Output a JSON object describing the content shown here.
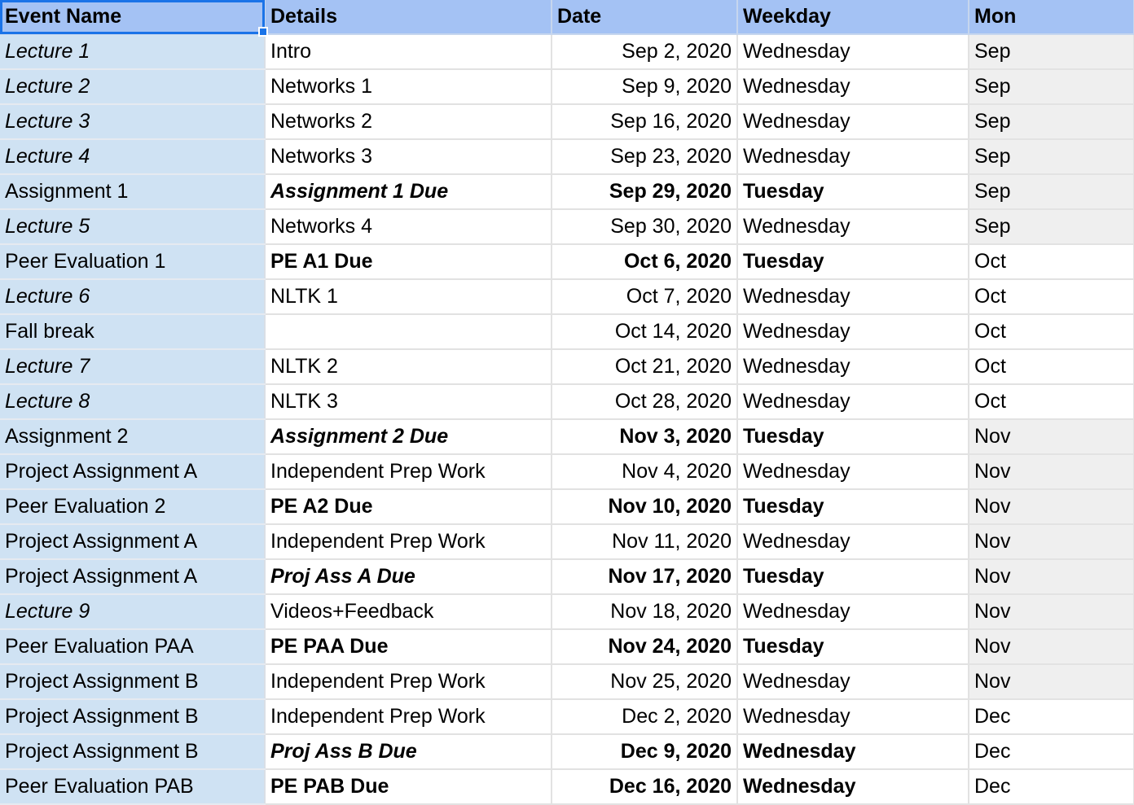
{
  "columns": [
    "Event Name",
    "Details",
    "Date",
    "Weekday",
    "Mon"
  ],
  "rows": [
    {
      "event": "Lecture 1",
      "details": "Intro",
      "date": "Sep 2, 2020",
      "weekday": "Wednesday",
      "month": "Sep",
      "style": {
        "event": "italic",
        "details": "normal",
        "date": "normal",
        "weekday": "normal"
      }
    },
    {
      "event": "Lecture 2",
      "details": "Networks 1",
      "date": "Sep 9, 2020",
      "weekday": "Wednesday",
      "month": "Sep",
      "style": {
        "event": "italic",
        "details": "normal",
        "date": "normal",
        "weekday": "normal"
      }
    },
    {
      "event": "Lecture 3",
      "details": "Networks 2",
      "date": "Sep 16, 2020",
      "weekday": "Wednesday",
      "month": "Sep",
      "style": {
        "event": "italic",
        "details": "normal",
        "date": "normal",
        "weekday": "normal"
      }
    },
    {
      "event": "Lecture 4",
      "details": "Networks 3",
      "date": "Sep 23, 2020",
      "weekday": "Wednesday",
      "month": "Sep",
      "style": {
        "event": "italic",
        "details": "normal",
        "date": "normal",
        "weekday": "normal"
      }
    },
    {
      "event": "Assignment 1",
      "details": "Assignment 1 Due",
      "date": "Sep 29, 2020",
      "weekday": "Tuesday",
      "month": "Sep",
      "style": {
        "event": "normal",
        "details": "bold-italic",
        "date": "bold",
        "weekday": "bold"
      }
    },
    {
      "event": "Lecture 5",
      "details": "Networks 4",
      "date": "Sep 30, 2020",
      "weekday": "Wednesday",
      "month": "Sep",
      "style": {
        "event": "italic",
        "details": "normal",
        "date": "normal",
        "weekday": "normal"
      }
    },
    {
      "event": "Peer Evaluation 1",
      "details": "PE A1 Due",
      "date": "Oct 6, 2020",
      "weekday": "Tuesday",
      "month": "Oct",
      "style": {
        "event": "normal",
        "details": "bold",
        "date": "bold",
        "weekday": "bold"
      }
    },
    {
      "event": "Lecture 6",
      "details": "NLTK 1",
      "date": "Oct 7, 2020",
      "weekday": "Wednesday",
      "month": "Oct",
      "style": {
        "event": "italic",
        "details": "normal",
        "date": "normal",
        "weekday": "normal"
      }
    },
    {
      "event": "Fall break",
      "details": "",
      "date": "Oct 14, 2020",
      "weekday": "Wednesday",
      "month": "Oct",
      "style": {
        "event": "normal",
        "details": "normal",
        "date": "normal",
        "weekday": "normal"
      }
    },
    {
      "event": "Lecture 7",
      "details": "NLTK 2",
      "date": "Oct 21, 2020",
      "weekday": "Wednesday",
      "month": "Oct",
      "style": {
        "event": "italic",
        "details": "normal",
        "date": "normal",
        "weekday": "normal"
      }
    },
    {
      "event": "Lecture 8",
      "details": "NLTK 3",
      "date": "Oct 28, 2020",
      "weekday": "Wednesday",
      "month": "Oct",
      "style": {
        "event": "italic",
        "details": "normal",
        "date": "normal",
        "weekday": "normal"
      }
    },
    {
      "event": "Assignment 2",
      "details": "Assignment 2 Due",
      "date": "Nov 3, 2020",
      "weekday": "Tuesday",
      "month": "Nov",
      "style": {
        "event": "normal",
        "details": "bold-italic",
        "date": "bold",
        "weekday": "bold"
      }
    },
    {
      "event": "Project Assignment A",
      "details": "Independent Prep Work",
      "date": "Nov 4, 2020",
      "weekday": "Wednesday",
      "month": "Nov",
      "style": {
        "event": "normal",
        "details": "normal",
        "date": "normal",
        "weekday": "normal"
      }
    },
    {
      "event": "Peer Evaluation 2",
      "details": "PE A2 Due",
      "date": "Nov 10, 2020",
      "weekday": "Tuesday",
      "month": "Nov",
      "style": {
        "event": "normal",
        "details": "bold",
        "date": "bold",
        "weekday": "bold"
      }
    },
    {
      "event": "Project Assignment A",
      "details": "Independent Prep Work",
      "date": "Nov 11, 2020",
      "weekday": "Wednesday",
      "month": "Nov",
      "style": {
        "event": "normal",
        "details": "normal",
        "date": "normal",
        "weekday": "normal"
      }
    },
    {
      "event": "Project Assignment A",
      "details": "Proj Ass A Due",
      "date": "Nov 17, 2020",
      "weekday": "Tuesday",
      "month": "Nov",
      "style": {
        "event": "normal",
        "details": "bold-italic",
        "date": "bold",
        "weekday": "bold"
      }
    },
    {
      "event": "Lecture 9",
      "details": "Videos+Feedback",
      "date": "Nov 18, 2020",
      "weekday": "Wednesday",
      "month": "Nov",
      "style": {
        "event": "italic",
        "details": "normal",
        "date": "normal",
        "weekday": "normal"
      }
    },
    {
      "event": "Peer Evaluation PAA",
      "details": "PE PAA Due",
      "date": "Nov 24, 2020",
      "weekday": "Tuesday",
      "month": "Nov",
      "style": {
        "event": "normal",
        "details": "bold",
        "date": "bold",
        "weekday": "bold"
      }
    },
    {
      "event": "Project Assignment B",
      "details": "Independent Prep Work",
      "date": "Nov 25, 2020",
      "weekday": "Wednesday",
      "month": "Nov",
      "style": {
        "event": "normal",
        "details": "normal",
        "date": "normal",
        "weekday": "normal"
      }
    },
    {
      "event": "Project Assignment B",
      "details": "Independent Prep Work",
      "date": "Dec 2, 2020",
      "weekday": "Wednesday",
      "month": "Dec",
      "style": {
        "event": "normal",
        "details": "normal",
        "date": "normal",
        "weekday": "normal"
      }
    },
    {
      "event": "Project Assignment B",
      "details": "Proj Ass B Due",
      "date": "Dec 9, 2020",
      "weekday": "Wednesday",
      "month": "Dec",
      "style": {
        "event": "normal",
        "details": "bold-italic",
        "date": "bold",
        "weekday": "bold"
      }
    },
    {
      "event": "Peer Evaluation PAB",
      "details": "PE PAB Due",
      "date": "Dec 16, 2020",
      "weekday": "Wednesday",
      "month": "Dec",
      "style": {
        "event": "normal",
        "details": "bold",
        "date": "bold",
        "weekday": "bold"
      }
    }
  ],
  "colors": {
    "header_bg": "#a4c2f4",
    "event_col_bg": "#cfe2f3",
    "month_col_bg": "#efefef",
    "selection": "#1a73e8"
  },
  "month_highlight": {
    "Sep": true,
    "Oct": false,
    "Nov": true,
    "Dec": false
  }
}
